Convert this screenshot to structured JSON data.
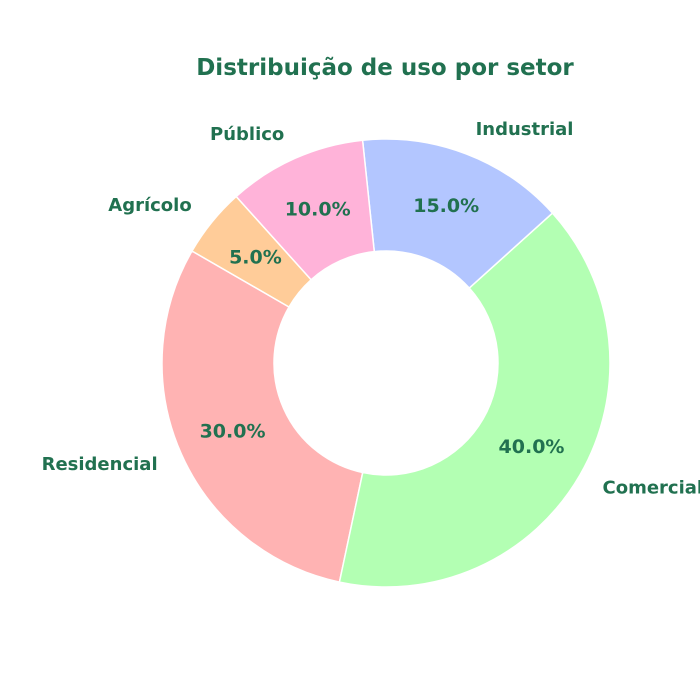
{
  "chart_data": {
    "type": "pie",
    "style": "donut",
    "title": "Distribuição de uso por setor",
    "text_color": "#217150",
    "edge_color": "#ffffff",
    "slices": [
      {
        "label": "Residencial",
        "value": 30.0,
        "pct_label": "30.0%",
        "color": "#ffb3b3"
      },
      {
        "label": "Comercial",
        "value": 40.0,
        "pct_label": "40.0%",
        "color": "#b3ffb3"
      },
      {
        "label": "Industrial",
        "value": 15.0,
        "pct_label": "15.0%",
        "color": "#b3c6ff"
      },
      {
        "label": "Público",
        "value": 10.0,
        "pct_label": "10.0%",
        "color": "#ffb3d9"
      },
      {
        "label": "Agrícolo",
        "value": 5.0,
        "pct_label": "5.0%",
        "color": "#ffcc99"
      }
    ],
    "legend": "none"
  }
}
